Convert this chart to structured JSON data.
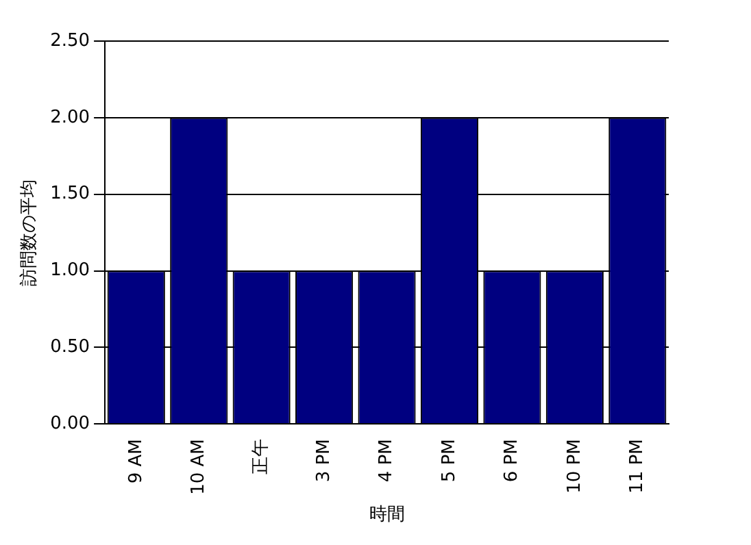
{
  "chart_data": {
    "type": "bar",
    "xlabel": "時間",
    "ylabel": "訪問数の平均",
    "categories": [
      "9 AM",
      "10 AM",
      "正午",
      "3 PM",
      "4 PM",
      "5 PM",
      "6 PM",
      "10 PM",
      "11 PM"
    ],
    "values": [
      1,
      2,
      1,
      1,
      1,
      2,
      1,
      1,
      2
    ],
    "color": "#000080",
    "ylim": [
      0,
      2.5
    ],
    "yticks": [
      {
        "value": 0,
        "label": "0.00"
      },
      {
        "value": 0.5,
        "label": "0.50"
      },
      {
        "value": 1,
        "label": "1.00"
      },
      {
        "value": 1.5,
        "label": "1.50"
      },
      {
        "value": 2,
        "label": "2.00"
      },
      {
        "value": 2.5,
        "label": "2.50"
      }
    ],
    "grid": "y",
    "legend": false
  }
}
